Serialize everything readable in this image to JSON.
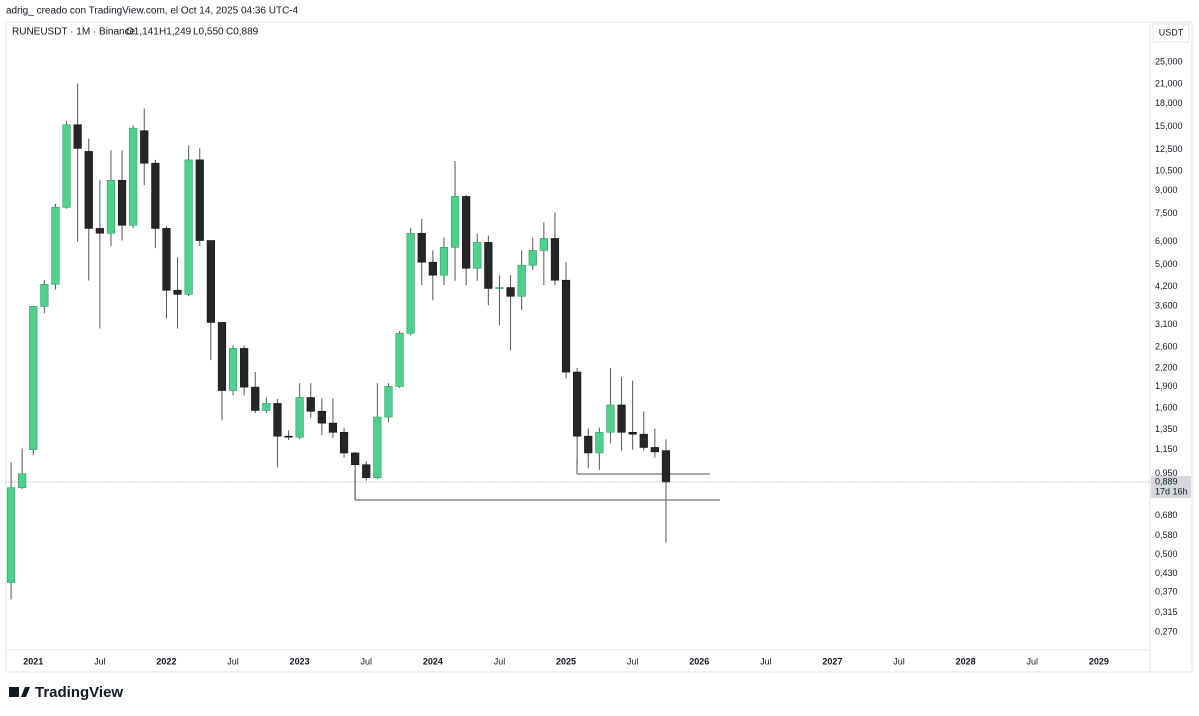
{
  "header": {
    "credit": "adrig_ creado con TradingView.com, el Oct 14, 2025 04:36 UTC-4",
    "symbol": "RUNEUSDT · 1M · Binance",
    "ohlc": [
      "O1,141",
      "H1,249",
      "L0,550",
      "C0,889"
    ],
    "logo": "TradingView"
  },
  "chart_data": {
    "type": "candlestick",
    "log_scale": true,
    "grid": false,
    "axis_unit": "USDT",
    "up_color": "#4fd08c",
    "down_color": "#262626",
    "categories": [
      null,
      null,
      "2021",
      null,
      null,
      null,
      null,
      null,
      "Jul",
      null,
      null,
      null,
      null,
      null,
      "2022",
      null,
      null,
      null,
      null,
      null,
      "Jul",
      null,
      null,
      null,
      null,
      null,
      "2023",
      null,
      null,
      null,
      null,
      null,
      "Jul",
      null,
      null,
      null,
      null,
      null,
      "2024",
      null,
      null,
      null,
      null,
      null,
      "Jul",
      null,
      null,
      null,
      null,
      null,
      "2025",
      null,
      null,
      null,
      null,
      null,
      "Jul",
      null,
      null,
      null,
      null,
      null,
      "2026",
      null,
      null,
      null,
      null,
      null,
      "Jul",
      null,
      null,
      null,
      null,
      null,
      "2027",
      null,
      null,
      null,
      null,
      null,
      "Jul",
      null,
      null,
      null,
      null,
      null,
      "2028",
      null,
      null,
      null,
      null,
      null,
      "Jul",
      null,
      null,
      null,
      null,
      null,
      "2029",
      null,
      null,
      null,
      null
    ],
    "open": [
      0.4,
      0.85,
      1.15,
      3.59,
      4.28,
      7.89,
      15.2,
      12.3,
      6.67,
      6.42,
      9.78,
      6.84,
      14.5,
      11.2,
      6.67,
      4.08,
      3.95,
      11.5,
      6.06,
      3.16,
      1.84,
      2.57,
      1.89,
      1.57,
      1.66,
      1.28,
      1.27,
      1.74,
      1.56,
      1.42,
      1.32,
      1.12,
      1.02,
      0.92,
      1.49,
      1.9,
      2.9,
      6.42,
      5.1,
      4.6,
      5.74,
      8.6,
      4.86,
      5.97,
      4.14,
      4.17,
      3.89,
      4.98,
      5.6,
      6.16,
      4.42,
      2.13,
      1.28,
      1.12,
      1.32,
      1.64,
      1.32,
      1.3,
      1.17,
      1.141,
      null,
      null,
      null,
      null,
      null,
      null,
      null,
      null,
      null,
      null,
      null,
      null,
      null,
      null,
      null,
      null,
      null,
      null,
      null,
      null,
      null,
      null,
      null,
      null,
      null,
      null,
      null,
      null,
      null,
      null,
      null,
      null,
      null,
      null,
      null,
      null,
      null,
      null,
      null,
      null,
      null,
      null,
      null
    ],
    "high": [
      1.04,
      1.16,
      3.6,
      4.42,
      8.1,
      15.7,
      21.1,
      13.6,
      9.8,
      12.4,
      12.4,
      15.1,
      17.3,
      11.5,
      6.8,
      5.3,
      12.9,
      12.6,
      6.06,
      3.16,
      2.63,
      2.63,
      2.13,
      1.74,
      1.72,
      1.34,
      1.95,
      1.95,
      1.73,
      1.73,
      1.37,
      1.13,
      1.05,
      1.95,
      1.95,
      2.95,
      6.7,
      7.2,
      5.6,
      6.2,
      11.4,
      8.7,
      6.4,
      6.3,
      4.6,
      4.6,
      5.6,
      6.2,
      7.0,
      7.57,
      5.1,
      2.2,
      1.36,
      1.37,
      2.2,
      2.05,
      1.99,
      1.56,
      1.36,
      1.249,
      null,
      null,
      null,
      null,
      null,
      null,
      null,
      null,
      null,
      null,
      null,
      null,
      null,
      null,
      null,
      null,
      null,
      null,
      null,
      null,
      null,
      null,
      null,
      null,
      null,
      null,
      null,
      null,
      null,
      null,
      null,
      null,
      null,
      null,
      null,
      null,
      null,
      null,
      null,
      null,
      null,
      null,
      null
    ],
    "low": [
      0.35,
      0.84,
      1.1,
      3.4,
      4.1,
      7.8,
      6.0,
      4.41,
      3.01,
      5.8,
      6.06,
      6.7,
      9.4,
      5.7,
      3.26,
      3.01,
      3.9,
      5.8,
      2.34,
      1.45,
      1.77,
      1.77,
      1.54,
      1.54,
      1.0,
      1.24,
      1.25,
      1.48,
      1.29,
      1.26,
      1.08,
      0.77,
      0.9,
      0.91,
      1.43,
      1.88,
      2.85,
      4.25,
      3.77,
      4.25,
      4.4,
      4.25,
      4.4,
      3.62,
      3.09,
      2.53,
      3.48,
      4.8,
      4.25,
      4.25,
      2.03,
      1.02,
      0.99,
      0.98,
      1.21,
      1.14,
      1.15,
      1.14,
      1.08,
      0.55,
      null,
      null,
      null,
      null,
      null,
      null,
      null,
      null,
      null,
      null,
      null,
      null,
      null,
      null,
      null,
      null,
      null,
      null,
      null,
      null,
      null,
      null,
      null,
      null,
      null,
      null,
      null,
      null,
      null,
      null,
      null,
      null,
      null,
      null,
      null,
      null,
      null,
      null,
      null,
      null,
      null,
      null,
      null
    ],
    "close": [
      0.85,
      0.95,
      3.59,
      4.28,
      7.89,
      15.2,
      12.6,
      6.67,
      6.42,
      9.78,
      6.84,
      14.8,
      11.2,
      6.67,
      4.08,
      3.95,
      11.5,
      6.06,
      3.16,
      1.84,
      2.57,
      1.89,
      1.57,
      1.66,
      1.28,
      1.27,
      1.74,
      1.56,
      1.42,
      1.32,
      1.12,
      1.02,
      0.92,
      1.49,
      1.9,
      2.9,
      6.42,
      5.1,
      4.6,
      5.74,
      8.6,
      4.86,
      5.97,
      4.14,
      4.17,
      3.89,
      4.98,
      5.6,
      6.16,
      4.42,
      2.13,
      1.28,
      1.12,
      1.32,
      1.64,
      1.32,
      1.3,
      1.17,
      1.13,
      0.889,
      null,
      null,
      null,
      null,
      null,
      null,
      null,
      null,
      null,
      null,
      null,
      null,
      null,
      null,
      null,
      null,
      null,
      null,
      null,
      null,
      null,
      null,
      null,
      null,
      null,
      null,
      null,
      null,
      null,
      null,
      null,
      null,
      null,
      null,
      null,
      null,
      null,
      null,
      null,
      null,
      null,
      null,
      null
    ],
    "ylim": [
      0.234,
      34.4
    ],
    "yticks": [
      {
        "value": 25,
        "label": "25,000"
      },
      {
        "value": 21,
        "label": "21,000"
      },
      {
        "value": 18,
        "label": "18,000"
      },
      {
        "value": 15,
        "label": "15,000"
      },
      {
        "value": 12.5,
        "label": "12,500"
      },
      {
        "value": 10.5,
        "label": "10,500"
      },
      {
        "value": 9,
        "label": "9,000"
      },
      {
        "value": 7.5,
        "label": "7,500"
      },
      {
        "value": 6,
        "label": "6,000"
      },
      {
        "value": 5,
        "label": "5,000"
      },
      {
        "value": 4.2,
        "label": "4,200"
      },
      {
        "value": 3.6,
        "label": "3,600"
      },
      {
        "value": 3.1,
        "label": "3,100"
      },
      {
        "value": 2.6,
        "label": "2,600"
      },
      {
        "value": 2.2,
        "label": "2,200"
      },
      {
        "value": 1.9,
        "label": "1,900"
      },
      {
        "value": 1.6,
        "label": "1,600"
      },
      {
        "value": 1.35,
        "label": "1,350"
      },
      {
        "value": 1.15,
        "label": "1,150"
      },
      {
        "value": 0.95,
        "label": "0,950"
      },
      {
        "value": 0.68,
        "label": "0,680"
      },
      {
        "value": 0.58,
        "label": "0,580"
      },
      {
        "value": 0.5,
        "label": "0,500"
      },
      {
        "value": 0.43,
        "label": "0,430"
      },
      {
        "value": 0.37,
        "label": "0,370"
      },
      {
        "value": 0.315,
        "label": "0,315"
      },
      {
        "value": 0.27,
        "label": "0,270"
      }
    ],
    "last_price": {
      "value": 0.889,
      "label": "0,889"
    },
    "countdown": "17d 16h"
  }
}
